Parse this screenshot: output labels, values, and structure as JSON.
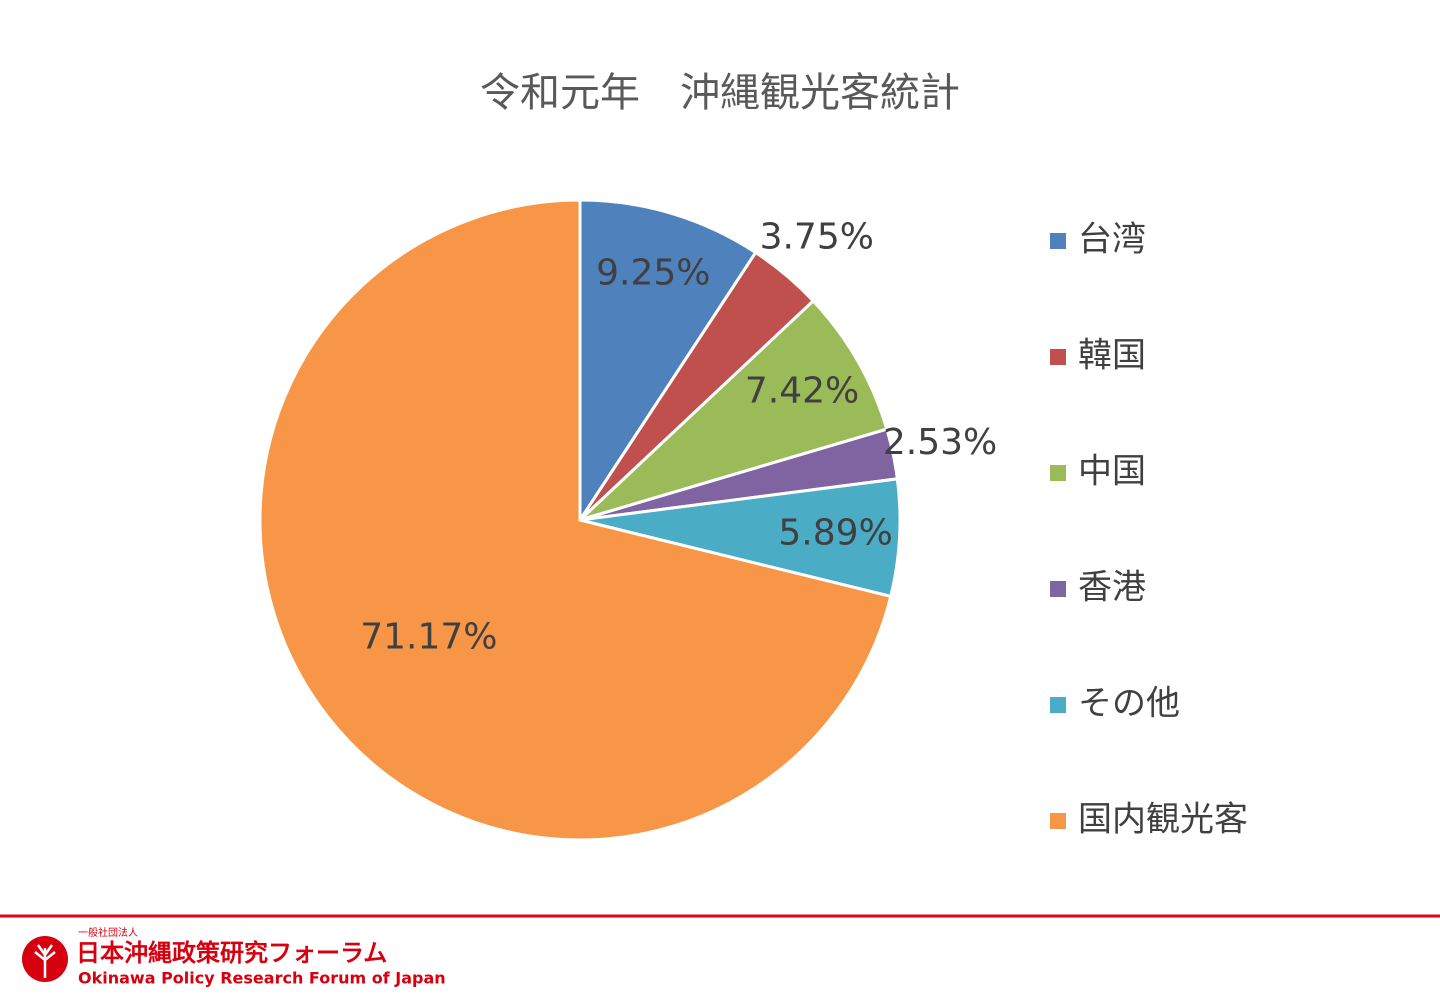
{
  "chart_data": {
    "type": "pie",
    "title": "令和元年　沖縄観光客統計",
    "categories": [
      "台湾",
      "韓国",
      "中国",
      "香港",
      "その他",
      "国内観光客"
    ],
    "values": [
      9.25,
      3.75,
      7.42,
      2.53,
      5.89,
      71.17
    ],
    "value_labels": [
      "9.25%",
      "3.75%",
      "7.42%",
      "2.53%",
      "5.89%",
      "71.17%"
    ],
    "colors": [
      "#4f81bd",
      "#c0504d",
      "#9bbb59",
      "#8064a2",
      "#4bacc6",
      "#f79646"
    ],
    "legend": "right"
  },
  "footer": {
    "org_type": "一般社団法人",
    "org_name": "日本沖縄政策研究フォーラム",
    "org_name_en": "Okinawa Policy Research Forum of Japan"
  }
}
